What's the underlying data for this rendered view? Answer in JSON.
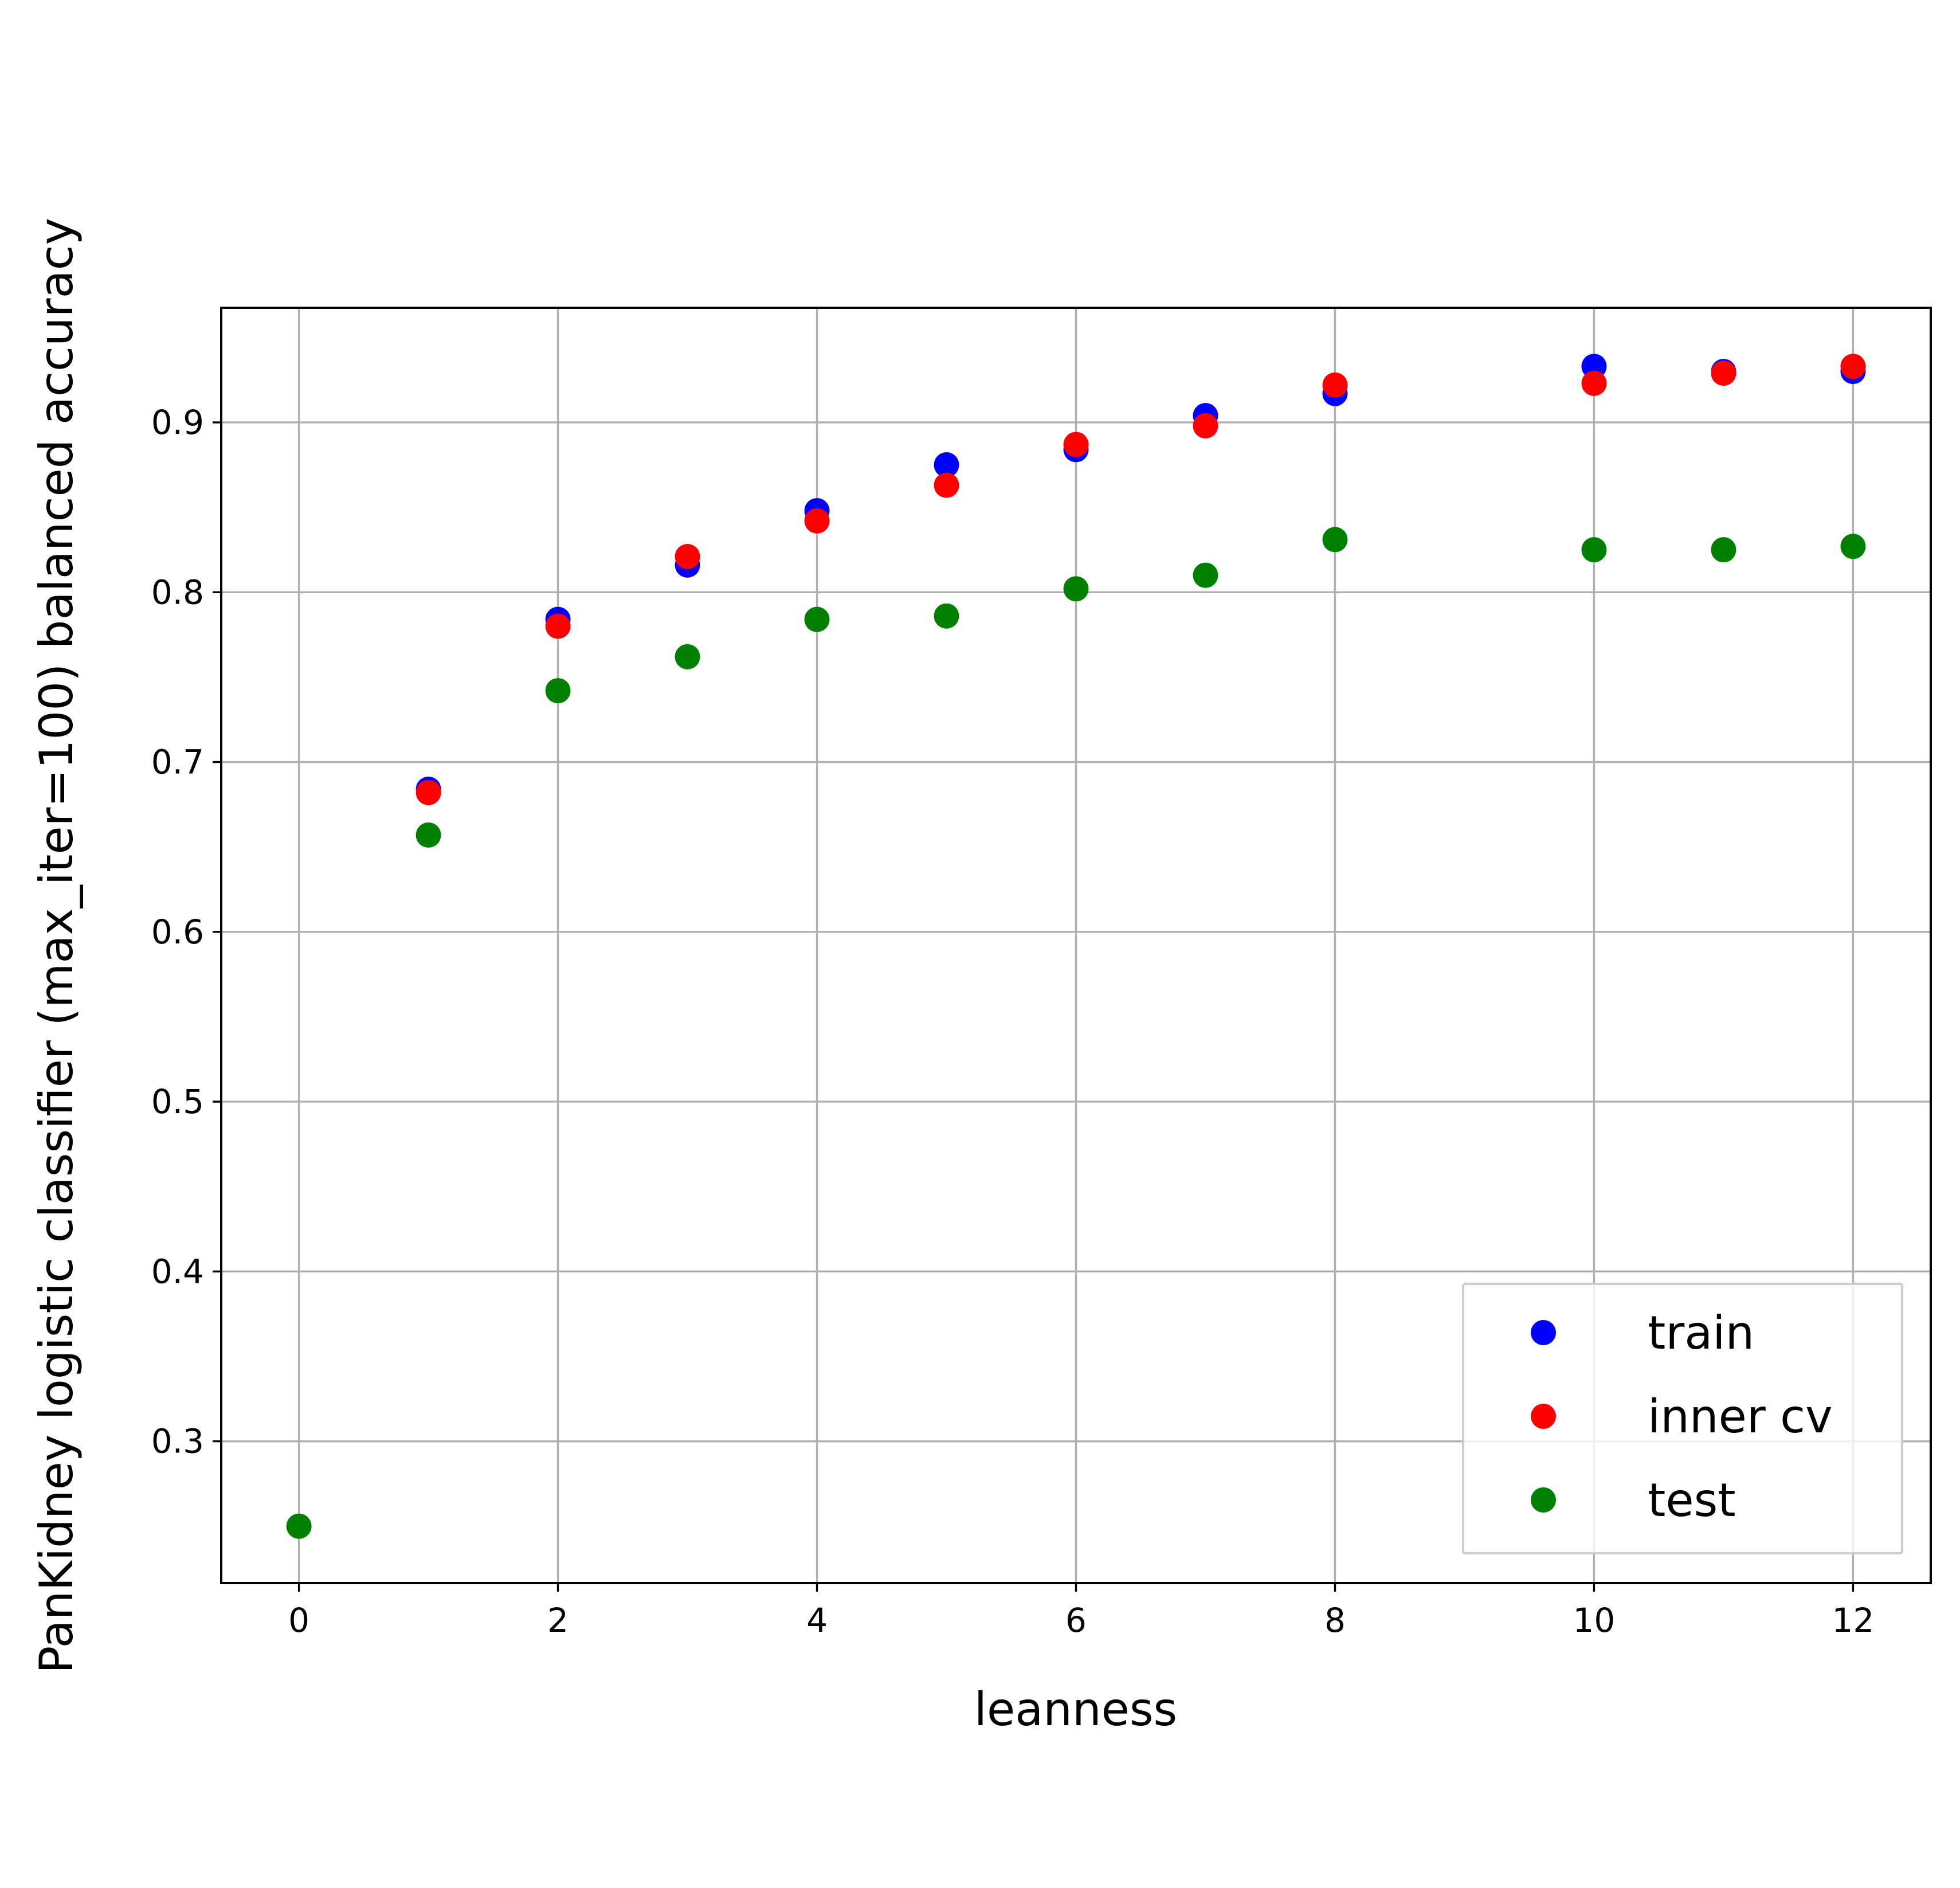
{
  "chart_data": {
    "type": "scatter",
    "title": "",
    "xlabel": "leanness",
    "ylabel": "PanKidney logistic classifier (max_iter=100) balanced accuracy",
    "xlim": [
      -0.6,
      12.6
    ],
    "ylim": [
      0.2165,
      0.9675
    ],
    "xticks": [
      0,
      2,
      4,
      6,
      8,
      10,
      12
    ],
    "xtick_labels": [
      "0",
      "2",
      "4",
      "6",
      "8",
      "10",
      "12"
    ],
    "yticks": [
      0.3,
      0.4,
      0.5,
      0.6,
      0.7,
      0.8,
      0.9
    ],
    "ytick_labels": [
      "0.3",
      "0.4",
      "0.5",
      "0.6",
      "0.7",
      "0.8",
      "0.9"
    ],
    "grid": true,
    "legend_position": "lower-right",
    "series": [
      {
        "name": "train",
        "color": "#0000ff",
        "x": [
          1,
          2,
          3,
          4,
          5,
          6,
          7,
          8,
          10,
          11,
          12
        ],
        "y": [
          0.684,
          0.784,
          0.816,
          0.848,
          0.875,
          0.884,
          0.904,
          0.917,
          0.933,
          0.93,
          0.93
        ]
      },
      {
        "name": "inner cv",
        "color": "#ff0000",
        "x": [
          1,
          2,
          3,
          4,
          5,
          6,
          7,
          8,
          10,
          11,
          12
        ],
        "y": [
          0.682,
          0.78,
          0.821,
          0.842,
          0.863,
          0.887,
          0.898,
          0.922,
          0.923,
          0.929,
          0.933
        ]
      },
      {
        "name": "test",
        "color": "#008000",
        "x": [
          0,
          1,
          2,
          3,
          4,
          5,
          6,
          7,
          8,
          10,
          11,
          12
        ],
        "y": [
          0.25,
          0.657,
          0.742,
          0.762,
          0.784,
          0.786,
          0.802,
          0.81,
          0.831,
          0.825,
          0.825,
          0.827
        ]
      }
    ]
  }
}
